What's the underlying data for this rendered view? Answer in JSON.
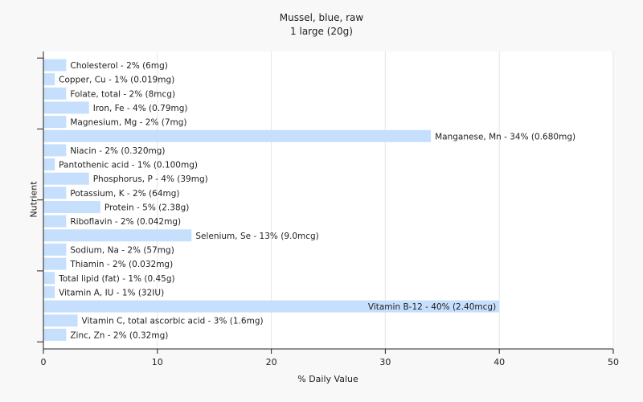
{
  "chart_data": {
    "type": "bar",
    "orientation": "horizontal",
    "title": "Mussel, blue, raw",
    "subtitle": "1 large (20g)",
    "xlabel": "% Daily Value",
    "ylabel": "Nutrient",
    "xlim": [
      0,
      50
    ],
    "xticks": [
      0,
      10,
      20,
      30,
      40,
      50
    ],
    "grid": true,
    "bar_color": "#c6dffd",
    "categories": [
      "Cholesterol - 2% (6mg)",
      "Copper, Cu - 1% (0.019mg)",
      "Folate, total - 2% (8mcg)",
      "Iron, Fe - 4% (0.79mg)",
      "Magnesium, Mg - 2% (7mg)",
      "Manganese, Mn - 34% (0.680mg)",
      "Niacin - 2% (0.320mg)",
      "Pantothenic acid - 1% (0.100mg)",
      "Phosphorus, P - 4% (39mg)",
      "Potassium, K - 2% (64mg)",
      "Protein - 5% (2.38g)",
      "Riboflavin - 2% (0.042mg)",
      "Selenium, Se - 13% (9.0mcg)",
      "Sodium, Na - 2% (57mg)",
      "Thiamin - 2% (0.032mg)",
      "Total lipid (fat) - 1% (0.45g)",
      "Vitamin A, IU - 1% (32IU)",
      "Vitamin B-12 - 40% (2.40mcg)",
      "Vitamin C, total ascorbic acid - 3% (1.6mg)",
      "Zinc, Zn - 2% (0.32mg)"
    ],
    "values": [
      2,
      1,
      2,
      4,
      2,
      34,
      2,
      1,
      4,
      2,
      5,
      2,
      13,
      2,
      2,
      1,
      1,
      40,
      3,
      2
    ]
  }
}
